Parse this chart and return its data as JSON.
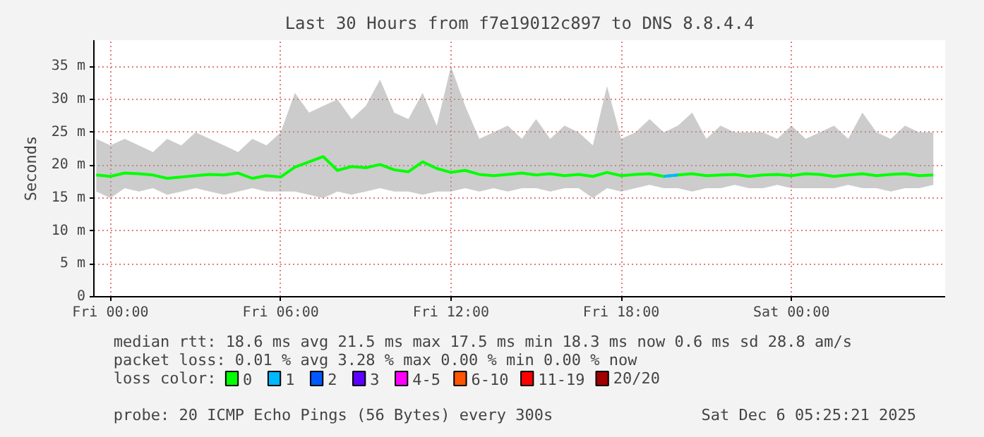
{
  "chart_data": {
    "type": "line",
    "title": "Last 30 Hours from f7e19012c897 to DNS 8.8.4.4",
    "ylabel": "Seconds",
    "xlim": [
      "2025-12-04T23:25",
      "2025-12-06T05:25"
    ],
    "ylim": [
      0,
      39
    ],
    "xticks": [
      {
        "value": "2025-12-05T00:00",
        "label": "Fri 00:00"
      },
      {
        "value": "2025-12-05T06:00",
        "label": "Fri 06:00"
      },
      {
        "value": "2025-12-05T12:00",
        "label": "Fri 12:00"
      },
      {
        "value": "2025-12-05T18:00",
        "label": "Fri 18:00"
      },
      {
        "value": "2025-12-06T00:00",
        "label": "Sat 00:00"
      }
    ],
    "yticks": [
      0,
      {
        "value": 5,
        "label": "5 m"
      },
      {
        "value": 10,
        "label": "10 m"
      },
      {
        "value": 15,
        "label": "15 m"
      },
      {
        "value": 20,
        "label": "20 m"
      },
      {
        "value": 25,
        "label": "25 m"
      },
      {
        "value": 30,
        "label": "30 m"
      },
      {
        "value": 35,
        "label": "35 m"
      }
    ],
    "grid": true,
    "legend": "bottom",
    "legend_title": "loss color:",
    "x": [
      "2025-12-04T23:30",
      "2025-12-05T00:00",
      "2025-12-05T00:30",
      "2025-12-05T01:00",
      "2025-12-05T01:30",
      "2025-12-05T02:00",
      "2025-12-05T02:30",
      "2025-12-05T03:00",
      "2025-12-05T03:30",
      "2025-12-05T04:00",
      "2025-12-05T04:30",
      "2025-12-05T05:00",
      "2025-12-05T05:30",
      "2025-12-05T06:00",
      "2025-12-05T06:30",
      "2025-12-05T07:00",
      "2025-12-05T07:30",
      "2025-12-05T08:00",
      "2025-12-05T08:30",
      "2025-12-05T09:00",
      "2025-12-05T09:30",
      "2025-12-05T10:00",
      "2025-12-05T10:30",
      "2025-12-05T11:00",
      "2025-12-05T11:30",
      "2025-12-05T12:00",
      "2025-12-05T12:30",
      "2025-12-05T13:00",
      "2025-12-05T13:30",
      "2025-12-05T14:00",
      "2025-12-05T14:30",
      "2025-12-05T15:00",
      "2025-12-05T15:30",
      "2025-12-05T16:00",
      "2025-12-05T16:30",
      "2025-12-05T17:00",
      "2025-12-05T17:30",
      "2025-12-05T18:00",
      "2025-12-05T18:30",
      "2025-12-05T19:00",
      "2025-12-05T19:30",
      "2025-12-05T20:00",
      "2025-12-05T20:30",
      "2025-12-05T21:00",
      "2025-12-05T21:30",
      "2025-12-05T22:00",
      "2025-12-05T22:30",
      "2025-12-05T23:00",
      "2025-12-05T23:30",
      "2025-12-06T00:00",
      "2025-12-06T00:30",
      "2025-12-06T01:00",
      "2025-12-06T01:30",
      "2025-12-06T02:00",
      "2025-12-06T02:30",
      "2025-12-06T03:00",
      "2025-12-06T03:30",
      "2025-12-06T04:00",
      "2025-12-06T04:30",
      "2025-12-06T05:00"
    ],
    "series": [
      {
        "name": "0",
        "color": "#00ff00",
        "values": [
          18.5,
          18.3,
          18.8,
          18.7,
          18.5,
          18.0,
          18.2,
          18.4,
          18.6,
          18.5,
          18.8,
          18.0,
          18.4,
          18.2,
          19.7,
          20.5,
          21.3,
          19.2,
          19.8,
          19.6,
          20.1,
          19.3,
          19.0,
          20.5,
          19.5,
          18.9,
          19.2,
          18.6,
          18.4,
          18.6,
          18.8,
          18.5,
          18.7,
          18.4,
          18.6,
          18.3,
          18.9,
          18.4,
          18.6,
          18.7,
          18.3,
          18.5,
          18.7,
          18.4,
          18.5,
          18.6,
          18.3,
          18.5,
          18.6,
          18.4,
          18.7,
          18.6,
          18.3,
          18.5,
          18.7,
          18.4,
          18.6,
          18.7,
          18.4,
          18.5
        ],
        "lower": [
          16,
          15,
          16.5,
          16,
          16.5,
          15.5,
          16,
          16.5,
          16,
          15.5,
          16,
          16.5,
          16,
          16,
          16,
          15.5,
          15,
          16,
          15.5,
          16,
          16.5,
          16,
          16,
          15.5,
          16,
          16,
          16.5,
          16,
          16.5,
          16,
          16.5,
          16.5,
          16,
          16.5,
          16.5,
          15,
          16.5,
          16,
          16.5,
          17,
          16.5,
          16.5,
          16,
          16.5,
          16.5,
          17,
          16.5,
          16.5,
          17,
          16.5,
          16.5,
          16.5,
          16.5,
          17,
          16.5,
          16.5,
          16,
          16.5,
          16.5,
          17
        ],
        "upper": [
          24,
          23,
          24,
          23,
          22,
          24,
          23,
          25,
          24,
          23,
          22,
          24,
          23,
          25,
          31,
          28,
          29,
          30,
          27,
          29,
          33,
          28,
          27,
          31,
          26,
          35,
          29,
          24,
          25,
          26,
          24,
          27,
          24,
          26,
          25,
          23,
          32,
          24,
          25,
          27,
          25,
          26,
          28,
          24,
          26,
          25,
          25,
          25,
          24,
          26,
          24,
          25,
          26,
          24,
          28,
          25,
          24,
          26,
          25,
          25
        ]
      },
      {
        "name": "1",
        "color": "#00b8ff",
        "values": [
          null,
          null,
          null,
          null,
          null,
          null,
          null,
          null,
          null,
          null,
          null,
          null,
          null,
          null,
          null,
          null,
          null,
          null,
          null,
          null,
          null,
          null,
          null,
          null,
          null,
          null,
          null,
          null,
          null,
          null,
          null,
          null,
          null,
          null,
          null,
          null,
          null,
          null,
          null,
          null,
          18.3,
          18.5,
          null,
          null,
          null,
          null,
          null,
          null,
          null,
          null,
          null,
          null,
          null,
          null,
          null,
          null,
          null,
          null,
          null,
          null
        ]
      },
      {
        "name": "2",
        "color": "#0059ff",
        "values": [
          null,
          null,
          null,
          null,
          null,
          null,
          null,
          null,
          null,
          null,
          null,
          null,
          null,
          null,
          null,
          null,
          null,
          null,
          null,
          null,
          null,
          null,
          null,
          null,
          null,
          null,
          null,
          null,
          null,
          null,
          null,
          null,
          null,
          null,
          null,
          null,
          null,
          null,
          null,
          null,
          null,
          null,
          null,
          null,
          null,
          null,
          null,
          null,
          null,
          null,
          null,
          null,
          null,
          null,
          null,
          null,
          null,
          null,
          null,
          null
        ]
      },
      {
        "name": "3",
        "color": "#5e00ff",
        "values": [
          null,
          null,
          null,
          null,
          null,
          null,
          null,
          null,
          null,
          null,
          null,
          null,
          null,
          null,
          null,
          null,
          null,
          null,
          null,
          null,
          null,
          null,
          null,
          null,
          null,
          null,
          null,
          null,
          null,
          null,
          null,
          null,
          null,
          null,
          null,
          null,
          null,
          null,
          null,
          null,
          null,
          null,
          null,
          null,
          null,
          null,
          null,
          null,
          null,
          null,
          null,
          null,
          null,
          null,
          null,
          null,
          null,
          null,
          null,
          null
        ]
      },
      {
        "name": "4-5",
        "color": "#ff00ff",
        "values": [
          null,
          null,
          null,
          null,
          null,
          null,
          null,
          null,
          null,
          null,
          null,
          null,
          null,
          null,
          null,
          null,
          null,
          null,
          null,
          null,
          null,
          null,
          null,
          null,
          null,
          null,
          null,
          null,
          null,
          null,
          null,
          null,
          null,
          null,
          null,
          null,
          null,
          null,
          null,
          null,
          null,
          null,
          null,
          null,
          null,
          null,
          null,
          null,
          null,
          null,
          null,
          null,
          null,
          null,
          null,
          null,
          null,
          null,
          null,
          null
        ]
      },
      {
        "name": "6-10",
        "color": "#ff5500",
        "values": [
          null,
          null,
          null,
          null,
          null,
          null,
          null,
          null,
          null,
          null,
          null,
          null,
          null,
          null,
          null,
          null,
          null,
          null,
          null,
          null,
          null,
          null,
          null,
          null,
          null,
          null,
          null,
          null,
          null,
          null,
          null,
          null,
          null,
          null,
          null,
          null,
          null,
          null,
          null,
          null,
          null,
          null,
          null,
          null,
          null,
          null,
          null,
          null,
          null,
          null,
          null,
          null,
          null,
          null,
          null,
          null,
          null,
          null,
          null,
          null
        ]
      },
      {
        "name": "11-19",
        "color": "#ff0000",
        "values": [
          null,
          null,
          null,
          null,
          null,
          null,
          null,
          null,
          null,
          null,
          null,
          null,
          null,
          null,
          null,
          null,
          null,
          null,
          null,
          null,
          null,
          null,
          null,
          null,
          null,
          null,
          null,
          null,
          null,
          null,
          null,
          null,
          null,
          null,
          null,
          null,
          null,
          null,
          null,
          null,
          null,
          null,
          null,
          null,
          null,
          null,
          null,
          null,
          null,
          null,
          null,
          null,
          null,
          null,
          null,
          null,
          null,
          null,
          null,
          null
        ]
      },
      {
        "name": "20/20",
        "color": "#a10000",
        "values": [
          null,
          null,
          null,
          null,
          null,
          null,
          null,
          null,
          null,
          null,
          null,
          null,
          null,
          null,
          null,
          null,
          null,
          null,
          null,
          null,
          null,
          null,
          null,
          null,
          null,
          null,
          null,
          null,
          null,
          null,
          null,
          null,
          null,
          null,
          null,
          null,
          null,
          null,
          null,
          null,
          null,
          null,
          null,
          null,
          null,
          null,
          null,
          null,
          null,
          null,
          null,
          null,
          null,
          null,
          null,
          null,
          null,
          null,
          null,
          null
        ]
      }
    ],
    "annotations": [
      "median rtt:  18.6 ms avg  21.5 ms max  17.5 ms min  18.3 ms now  0.6 ms sd  28.8   am/s",
      "packet loss: 0.01 % avg  3.28 % max  0.00 % min  0.00 % now",
      "probe:       20 ICMP Echo Pings (56 Bytes) every 300s",
      "Sat Dec  6 05:25:21 2025"
    ]
  }
}
